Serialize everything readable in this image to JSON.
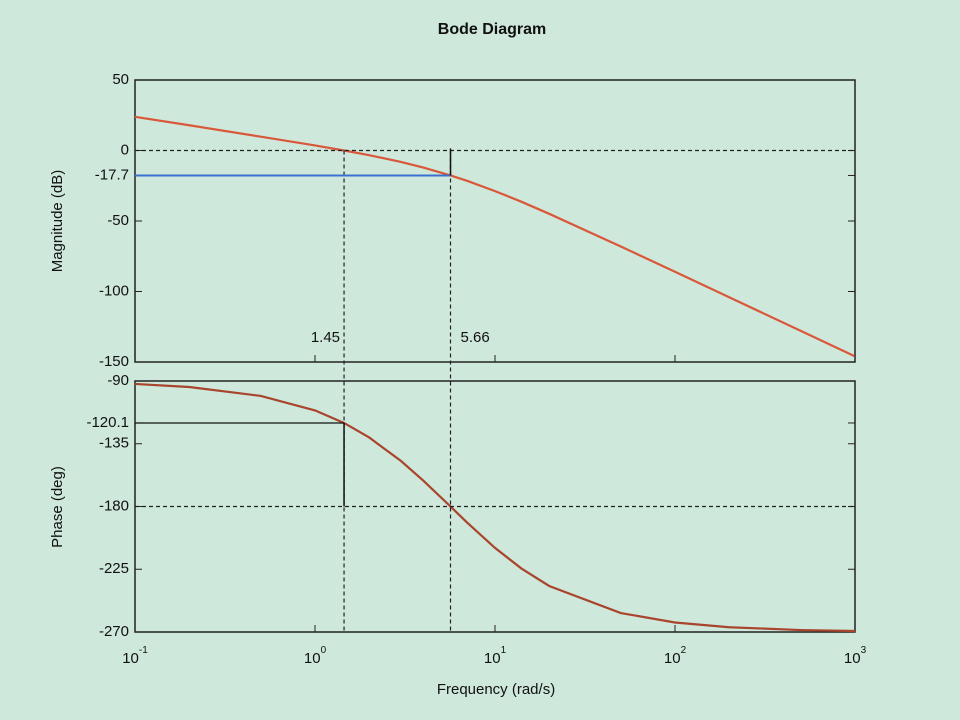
{
  "chart_data": [
    {
      "type": "line",
      "title": "Bode Diagram",
      "y_label": "Magnitude (dB)",
      "color": "#d9583a",
      "x": [
        0.1,
        0.2,
        0.5,
        1,
        1.45,
        2,
        3,
        4,
        5.66,
        7,
        10,
        14,
        20,
        50,
        100,
        200,
        500,
        1000
      ],
      "values": [
        23.9,
        17.9,
        9.8,
        3.6,
        0,
        -3.3,
        -8.1,
        -12.1,
        -17.7,
        -21.5,
        -28.8,
        -36.3,
        -44.9,
        -68.1,
        -86.0,
        -104.1,
        -127.9,
        -146.0
      ],
      "xlim": [
        0.1,
        1000
      ],
      "log_x": true,
      "ylim": [
        -150,
        50
      ],
      "yticks": [
        50,
        0,
        -17.7,
        -50,
        -100,
        -150
      ],
      "markers": [
        1.45,
        5.66
      ],
      "margin_color": "#3b6fd0"
    },
    {
      "type": "line",
      "y_label": "Phase (deg)",
      "x_label": "Frequency  (rad/s)",
      "color": "#a8452c",
      "x": [
        0.1,
        0.2,
        0.5,
        1,
        1.45,
        2,
        3,
        4,
        5.66,
        7,
        10,
        14,
        20,
        50,
        100,
        200,
        500,
        1000
      ],
      "values": [
        -92.1,
        -94.3,
        -100.7,
        -111.1,
        -120.1,
        -130.5,
        -147.3,
        -161.5,
        -180,
        -191.5,
        -209.7,
        -224.4,
        -237.0,
        -256.4,
        -263.2,
        -266.6,
        -268.6,
        -269.3
      ],
      "xlim": [
        0.1,
        1000
      ],
      "log_x": true,
      "xticks": [
        {
          "value": 0.1,
          "label": "10",
          "exponent": "-1"
        },
        {
          "value": 1,
          "label": "10",
          "exponent": "0"
        },
        {
          "value": 10,
          "label": "10",
          "exponent": "1"
        },
        {
          "value": 100,
          "label": "10",
          "exponent": "2"
        },
        {
          "value": 1000,
          "label": "10",
          "exponent": "3"
        }
      ],
      "ylim": [
        -270,
        -90
      ],
      "yticks": [
        -90,
        -120.1,
        -135,
        -180,
        -225,
        -270
      ]
    }
  ]
}
